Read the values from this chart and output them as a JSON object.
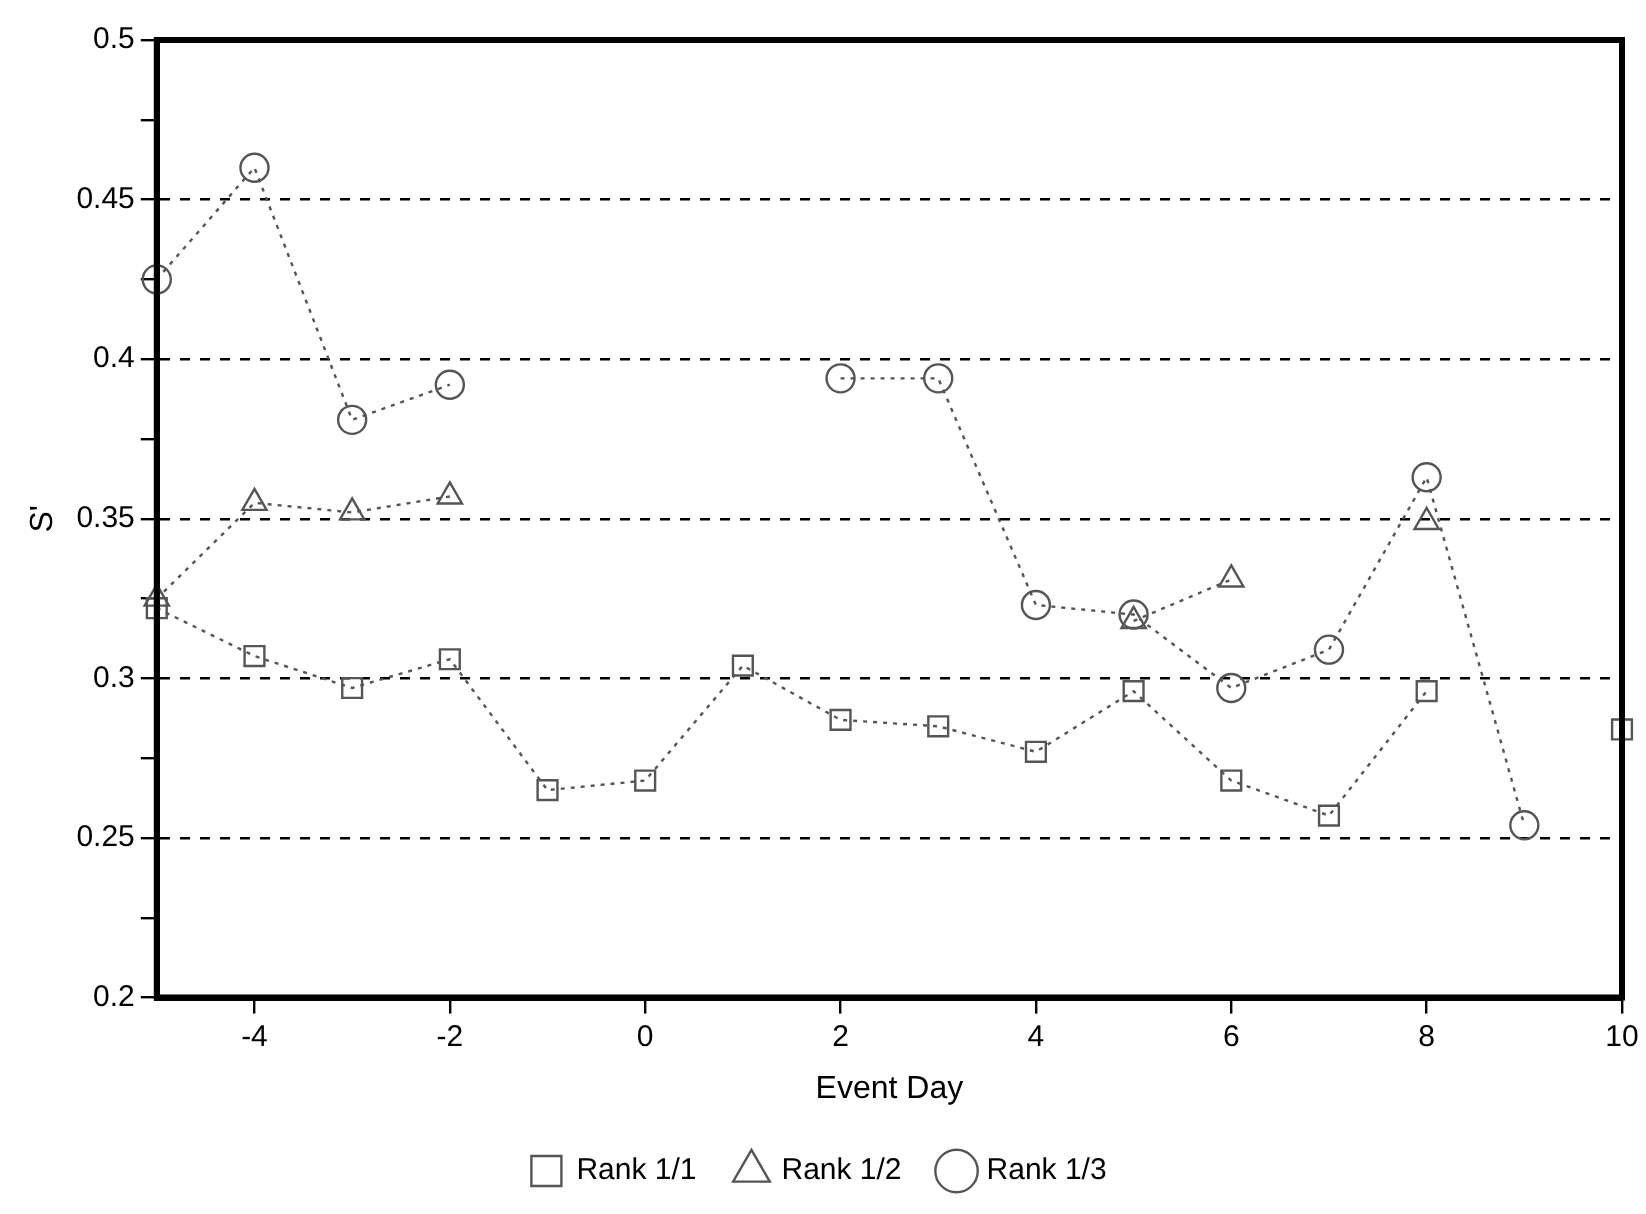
{
  "chart_data": {
    "type": "line",
    "xlabel": "Event Day",
    "ylabel": "S'",
    "x": [
      -5,
      -4,
      -3,
      -2,
      -1,
      0,
      1,
      2,
      3,
      4,
      5,
      6,
      7,
      8,
      9,
      10
    ],
    "series": [
      {
        "name": "Rank 1/1",
        "color": "#555555",
        "marker": "square",
        "values": [
          0.322,
          0.307,
          0.297,
          0.306,
          0.265,
          0.268,
          0.304,
          0.287,
          0.285,
          0.277,
          0.296,
          0.268,
          0.257,
          0.296,
          null,
          0.284
        ]
      },
      {
        "name": "Rank 1/2",
        "color": "#555555",
        "marker": "triangle",
        "values": [
          0.325,
          0.355,
          0.352,
          0.357,
          null,
          null,
          null,
          null,
          null,
          null,
          0.318,
          0.331,
          null,
          0.349,
          null,
          null
        ]
      },
      {
        "name": "Rank 1/3",
        "color": "#555555",
        "marker": "circle",
        "values": [
          0.425,
          0.46,
          0.381,
          0.392,
          null,
          null,
          null,
          0.394,
          0.394,
          0.323,
          0.32,
          0.297,
          0.309,
          0.363,
          0.254,
          null
        ]
      }
    ],
    "xlim": [
      -5,
      10
    ],
    "xticks": [
      -4,
      -2,
      0,
      2,
      4,
      6,
      8,
      10
    ],
    "ylim": [
      0.2,
      0.5
    ],
    "yticks": [
      0.2,
      {
        "value": 0.225,
        "label": null
      },
      0.25,
      {
        "value": 0.275,
        "label": null
      },
      0.3,
      {
        "value": 0.325,
        "label": null
      },
      0.35,
      {
        "value": 0.375,
        "label": null
      },
      0.4,
      {
        "value": 0.425,
        "label": null
      },
      0.45,
      {
        "value": 0.475,
        "label": null
      },
      0.5
    ],
    "grid": "y",
    "legend": "bottom",
    "line_style": "dotted"
  }
}
